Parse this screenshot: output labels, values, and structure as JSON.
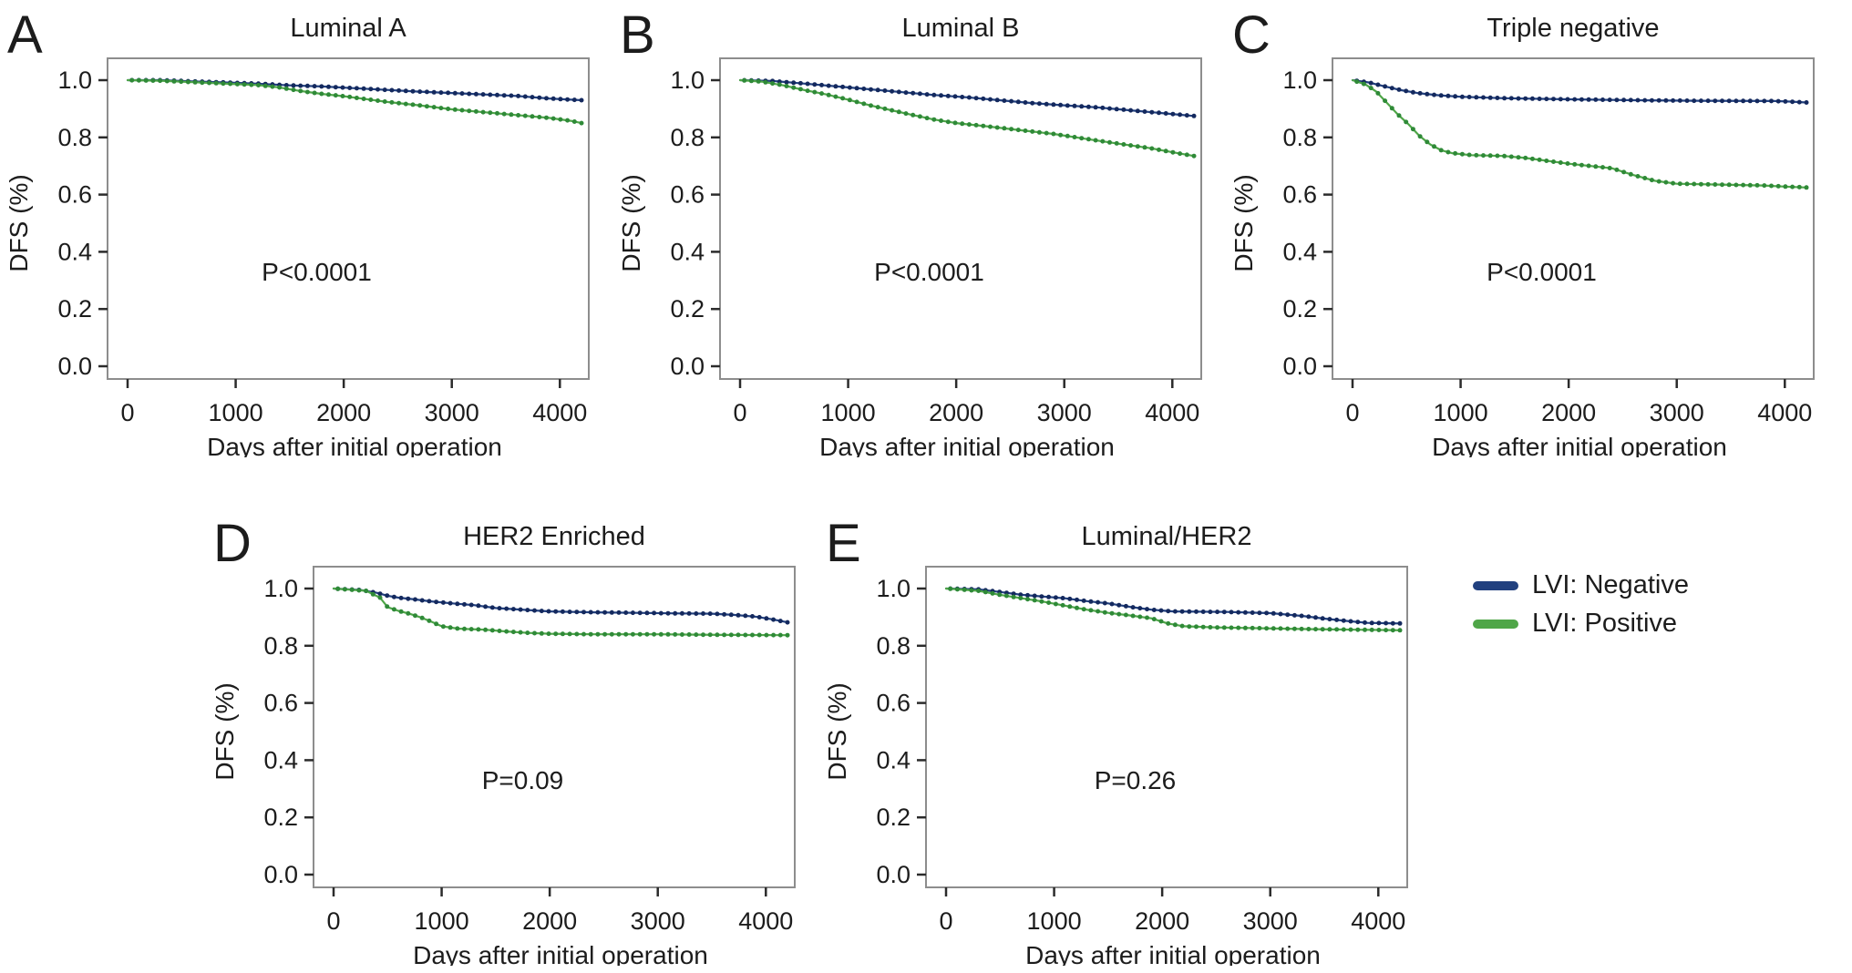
{
  "figure": {
    "background": "#ffffff",
    "border_color": "#8d8d8d",
    "tick_color": "#2b2b2b",
    "legend": {
      "position": "right of panel E, top",
      "items": [
        {
          "label": "LVI: Negative",
          "color": "#21407f",
          "dot_color": "#14295e"
        },
        {
          "label": "LVI: Positive",
          "color": "#4fa648",
          "dot_color": "#2f8a38"
        }
      ]
    }
  },
  "chart_data": [
    {
      "type": "line",
      "subtype": "kaplan-meier",
      "label": "A",
      "title": "Luminal A",
      "p_value": "P<0.0001",
      "xlabel": "Days after initial operation",
      "ylabel": "DFS (%)",
      "xlim": [
        0,
        4200
      ],
      "ylim": [
        0.0,
        1.05
      ],
      "xticks": [
        0,
        1000,
        2000,
        3000,
        4000
      ],
      "yticks": [
        "1.0",
        "0.8",
        "0.6",
        "0.4",
        "0.2",
        "0.0"
      ],
      "grid": false,
      "series": [
        {
          "name": "LVI: Negative",
          "color": "#21407f",
          "dot_color": "#14295e",
          "points": [
            [
              0,
              1.0
            ],
            [
              300,
              1.0
            ],
            [
              600,
              0.996
            ],
            [
              900,
              0.992
            ],
            [
              1200,
              0.988
            ],
            [
              1500,
              0.982
            ],
            [
              1800,
              0.978
            ],
            [
              2100,
              0.972
            ],
            [
              2400,
              0.966
            ],
            [
              2700,
              0.96
            ],
            [
              3000,
              0.955
            ],
            [
              3300,
              0.95
            ],
            [
              3600,
              0.945
            ],
            [
              3900,
              0.936
            ],
            [
              4200,
              0.93
            ]
          ]
        },
        {
          "name": "LVI: Positive",
          "color": "#4fa648",
          "dot_color": "#2f8a38",
          "points": [
            [
              0,
              1.0
            ],
            [
              300,
              0.998
            ],
            [
              600,
              0.993
            ],
            [
              900,
              0.988
            ],
            [
              1200,
              0.983
            ],
            [
              1400,
              0.975
            ],
            [
              1600,
              0.962
            ],
            [
              1800,
              0.952
            ],
            [
              2000,
              0.944
            ],
            [
              2200,
              0.934
            ],
            [
              2400,
              0.924
            ],
            [
              2700,
              0.912
            ],
            [
              3000,
              0.898
            ],
            [
              3300,
              0.888
            ],
            [
              3600,
              0.878
            ],
            [
              3900,
              0.868
            ],
            [
              4100,
              0.858
            ],
            [
              4200,
              0.85
            ]
          ]
        }
      ]
    },
    {
      "type": "line",
      "subtype": "kaplan-meier",
      "label": "B",
      "title": "Luminal B",
      "p_value": "P<0.0001",
      "xlabel": "Days after initial operation",
      "ylabel": "DFS (%)",
      "xlim": [
        0,
        4200
      ],
      "ylim": [
        0.0,
        1.05
      ],
      "xticks": [
        0,
        1000,
        2000,
        3000,
        4000
      ],
      "yticks": [
        "1.0",
        "0.8",
        "0.6",
        "0.4",
        "0.2",
        "0.0"
      ],
      "grid": false,
      "series": [
        {
          "name": "LVI: Negative",
          "color": "#21407f",
          "dot_color": "#14295e",
          "points": [
            [
              0,
              1.0
            ],
            [
              300,
              0.997
            ],
            [
              600,
              0.988
            ],
            [
              900,
              0.978
            ],
            [
              1200,
              0.968
            ],
            [
              1500,
              0.958
            ],
            [
              1800,
              0.948
            ],
            [
              2100,
              0.94
            ],
            [
              2400,
              0.93
            ],
            [
              2700,
              0.92
            ],
            [
              3000,
              0.912
            ],
            [
              3300,
              0.905
            ],
            [
              3600,
              0.895
            ],
            [
              3900,
              0.885
            ],
            [
              4200,
              0.875
            ]
          ]
        },
        {
          "name": "LVI: Positive",
          "color": "#4fa648",
          "dot_color": "#2f8a38",
          "points": [
            [
              0,
              1.0
            ],
            [
              200,
              0.995
            ],
            [
              400,
              0.982
            ],
            [
              600,
              0.965
            ],
            [
              800,
              0.95
            ],
            [
              1000,
              0.932
            ],
            [
              1200,
              0.912
            ],
            [
              1400,
              0.895
            ],
            [
              1600,
              0.878
            ],
            [
              1800,
              0.862
            ],
            [
              2000,
              0.85
            ],
            [
              2300,
              0.838
            ],
            [
              2600,
              0.825
            ],
            [
              2900,
              0.812
            ],
            [
              3200,
              0.795
            ],
            [
              3500,
              0.778
            ],
            [
              3800,
              0.762
            ],
            [
              4000,
              0.748
            ],
            [
              4200,
              0.735
            ]
          ]
        }
      ]
    },
    {
      "type": "line",
      "subtype": "kaplan-meier",
      "label": "C",
      "title": "Triple negative",
      "p_value": "P<0.0001",
      "xlabel": "Days after initial operation",
      "ylabel": "DFS (%)",
      "xlim": [
        0,
        4200
      ],
      "ylim": [
        0.0,
        1.05
      ],
      "xticks": [
        0,
        1000,
        2000,
        3000,
        4000
      ],
      "yticks": [
        "1.0",
        "0.8",
        "0.6",
        "0.4",
        "0.2",
        "0.0"
      ],
      "grid": false,
      "series": [
        {
          "name": "LVI: Negative",
          "color": "#21407f",
          "dot_color": "#14295e",
          "points": [
            [
              0,
              1.0
            ],
            [
              150,
              0.992
            ],
            [
              300,
              0.978
            ],
            [
              450,
              0.965
            ],
            [
              600,
              0.955
            ],
            [
              800,
              0.947
            ],
            [
              1000,
              0.942
            ],
            [
              1400,
              0.937
            ],
            [
              2000,
              0.933
            ],
            [
              2600,
              0.93
            ],
            [
              3200,
              0.928
            ],
            [
              3900,
              0.927
            ],
            [
              4050,
              0.925
            ],
            [
              4200,
              0.922
            ]
          ]
        },
        {
          "name": "LVI: Positive",
          "color": "#4fa648",
          "dot_color": "#2f8a38",
          "points": [
            [
              0,
              1.0
            ],
            [
              120,
              0.985
            ],
            [
              220,
              0.96
            ],
            [
              320,
              0.92
            ],
            [
              420,
              0.88
            ],
            [
              520,
              0.845
            ],
            [
              620,
              0.805
            ],
            [
              720,
              0.775
            ],
            [
              820,
              0.755
            ],
            [
              920,
              0.745
            ],
            [
              1100,
              0.738
            ],
            [
              1400,
              0.735
            ],
            [
              1600,
              0.728
            ],
            [
              1800,
              0.718
            ],
            [
              2000,
              0.708
            ],
            [
              2200,
              0.7
            ],
            [
              2400,
              0.692
            ],
            [
              2600,
              0.668
            ],
            [
              2800,
              0.648
            ],
            [
              3000,
              0.638
            ],
            [
              3400,
              0.635
            ],
            [
              3800,
              0.632
            ],
            [
              4000,
              0.628
            ],
            [
              4200,
              0.625
            ]
          ]
        }
      ]
    },
    {
      "type": "line",
      "subtype": "kaplan-meier",
      "label": "D",
      "title": "HER2 Enriched",
      "p_value": "P=0.09",
      "xlabel": "Days after initial operation",
      "ylabel": "DFS (%)",
      "xlim": [
        0,
        4200
      ],
      "ylim": [
        0.0,
        1.05
      ],
      "xticks": [
        0,
        1000,
        2000,
        3000,
        4000
      ],
      "yticks": [
        "1.0",
        "0.8",
        "0.6",
        "0.4",
        "0.2",
        "0.0"
      ],
      "grid": false,
      "series": [
        {
          "name": "LVI: Negative",
          "color": "#21407f",
          "dot_color": "#14295e",
          "points": [
            [
              0,
              1.0
            ],
            [
              250,
              0.995
            ],
            [
              400,
              0.985
            ],
            [
              500,
              0.975
            ],
            [
              600,
              0.968
            ],
            [
              750,
              0.962
            ],
            [
              900,
              0.955
            ],
            [
              1100,
              0.948
            ],
            [
              1300,
              0.942
            ],
            [
              1500,
              0.932
            ],
            [
              1700,
              0.927
            ],
            [
              2000,
              0.92
            ],
            [
              2400,
              0.917
            ],
            [
              2800,
              0.915
            ],
            [
              3200,
              0.913
            ],
            [
              3500,
              0.912
            ],
            [
              3700,
              0.908
            ],
            [
              3900,
              0.902
            ],
            [
              4050,
              0.893
            ],
            [
              4200,
              0.882
            ]
          ]
        },
        {
          "name": "LVI: Positive",
          "color": "#4fa648",
          "dot_color": "#2f8a38",
          "points": [
            [
              0,
              1.0
            ],
            [
              300,
              0.992
            ],
            [
              430,
              0.968
            ],
            [
              500,
              0.935
            ],
            [
              600,
              0.922
            ],
            [
              700,
              0.912
            ],
            [
              800,
              0.9
            ],
            [
              900,
              0.885
            ],
            [
              1000,
              0.868
            ],
            [
              1150,
              0.86
            ],
            [
              1400,
              0.856
            ],
            [
              1600,
              0.85
            ],
            [
              1800,
              0.845
            ],
            [
              2000,
              0.842
            ],
            [
              2400,
              0.84
            ],
            [
              3000,
              0.84
            ],
            [
              3600,
              0.838
            ],
            [
              4200,
              0.837
            ]
          ]
        }
      ]
    },
    {
      "type": "line",
      "subtype": "kaplan-meier",
      "label": "E",
      "title": "Luminal/HER2",
      "p_value": "P=0.26",
      "xlabel": "Days after initial operation",
      "ylabel": "DFS (%)",
      "xlim": [
        0,
        4200
      ],
      "ylim": [
        0.0,
        1.05
      ],
      "xticks": [
        0,
        1000,
        2000,
        3000,
        4000
      ],
      "yticks": [
        "1.0",
        "0.8",
        "0.6",
        "0.4",
        "0.2",
        "0.0"
      ],
      "grid": false,
      "series": [
        {
          "name": "LVI: Negative",
          "color": "#21407f",
          "dot_color": "#14295e",
          "points": [
            [
              0,
              1.0
            ],
            [
              300,
              0.997
            ],
            [
              500,
              0.988
            ],
            [
              700,
              0.978
            ],
            [
              900,
              0.972
            ],
            [
              1100,
              0.966
            ],
            [
              1300,
              0.956
            ],
            [
              1500,
              0.948
            ],
            [
              1700,
              0.936
            ],
            [
              1900,
              0.926
            ],
            [
              2100,
              0.92
            ],
            [
              2600,
              0.918
            ],
            [
              3000,
              0.914
            ],
            [
              3300,
              0.904
            ],
            [
              3500,
              0.895
            ],
            [
              3700,
              0.887
            ],
            [
              3900,
              0.88
            ],
            [
              4200,
              0.878
            ]
          ]
        },
        {
          "name": "LVI: Positive",
          "color": "#4fa648",
          "dot_color": "#2f8a38",
          "points": [
            [
              0,
              1.0
            ],
            [
              300,
              0.992
            ],
            [
              500,
              0.978
            ],
            [
              700,
              0.966
            ],
            [
              900,
              0.954
            ],
            [
              1100,
              0.94
            ],
            [
              1300,
              0.926
            ],
            [
              1500,
              0.915
            ],
            [
              1700,
              0.906
            ],
            [
              1900,
              0.896
            ],
            [
              2050,
              0.878
            ],
            [
              2200,
              0.868
            ],
            [
              2500,
              0.864
            ],
            [
              2800,
              0.862
            ],
            [
              3100,
              0.86
            ],
            [
              3400,
              0.858
            ],
            [
              3800,
              0.856
            ],
            [
              4200,
              0.854
            ]
          ]
        }
      ]
    }
  ]
}
